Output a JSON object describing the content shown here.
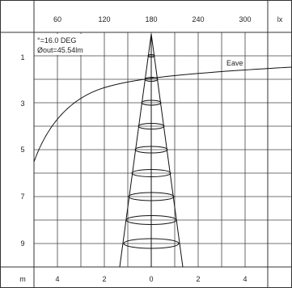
{
  "diagram": {
    "beam_angle_text": "°=16.0 DEG",
    "flux_text": "Øout=45.54lm",
    "curve_label": "Eave",
    "top_axis": {
      "ticks": [
        "60",
        "120",
        "180",
        "240",
        "300"
      ],
      "unit": "lx"
    },
    "left_axis": {
      "ticks": [
        "1",
        "3",
        "5",
        "7",
        "9"
      ]
    },
    "bottom_axis": {
      "unit": "m",
      "ticks": [
        "4",
        "2",
        "0",
        "2",
        "4"
      ]
    }
  }
}
